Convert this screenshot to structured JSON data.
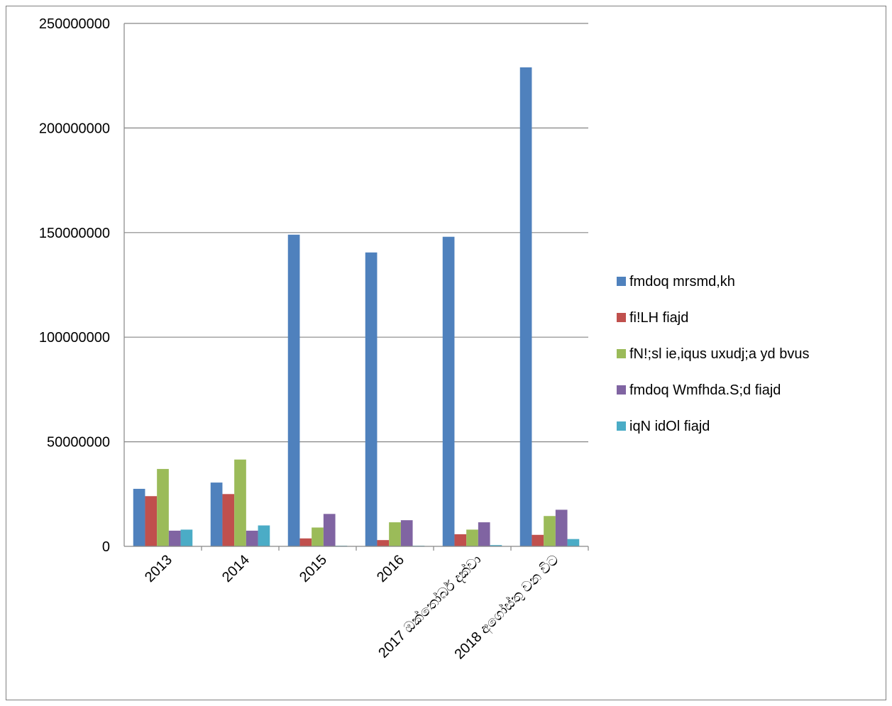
{
  "chart_data": {
    "type": "bar",
    "categories": [
      "2013",
      "2014",
      "2015",
      "2016",
      "2017 ඔක්තෝබර් දක්වා",
      "2018 අගෝස්තු වන විට"
    ],
    "ylim": [
      0,
      250000000
    ],
    "yticks": [
      0,
      50000000,
      100000000,
      150000000,
      200000000,
      250000000
    ],
    "ytick_labels": [
      "0",
      "50000000",
      "100000000",
      "150000000",
      "200000000",
      "250000000"
    ],
    "grid": true,
    "legend_position": "right",
    "series": [
      {
        "name": "fmdoq mrsmd,kh",
        "color": "#4f81bd",
        "values": [
          27500000,
          30500000,
          149000000,
          140500000,
          148000000,
          229000000
        ]
      },
      {
        "name": "fi!LH fiajd",
        "color": "#c0504d",
        "values": [
          24000000,
          25000000,
          3800000,
          3000000,
          5800000,
          5500000
        ]
      },
      {
        "name": "fN!;sl ie,iqus uxudj;a yd bvus",
        "color": "#9bbb59",
        "values": [
          37000000,
          41500000,
          9000000,
          11500000,
          8000000,
          14500000
        ]
      },
      {
        "name": "fmdoq Wmfhda.S;d fiajd",
        "color": "#8064a2",
        "values": [
          7500000,
          7500000,
          15500000,
          12500000,
          11500000,
          17500000
        ]
      },
      {
        "name": "iqN idOl fiajd",
        "color": "#4bacc6",
        "values": [
          8000000,
          10000000,
          300000,
          300000,
          600000,
          3500000
        ]
      }
    ]
  }
}
